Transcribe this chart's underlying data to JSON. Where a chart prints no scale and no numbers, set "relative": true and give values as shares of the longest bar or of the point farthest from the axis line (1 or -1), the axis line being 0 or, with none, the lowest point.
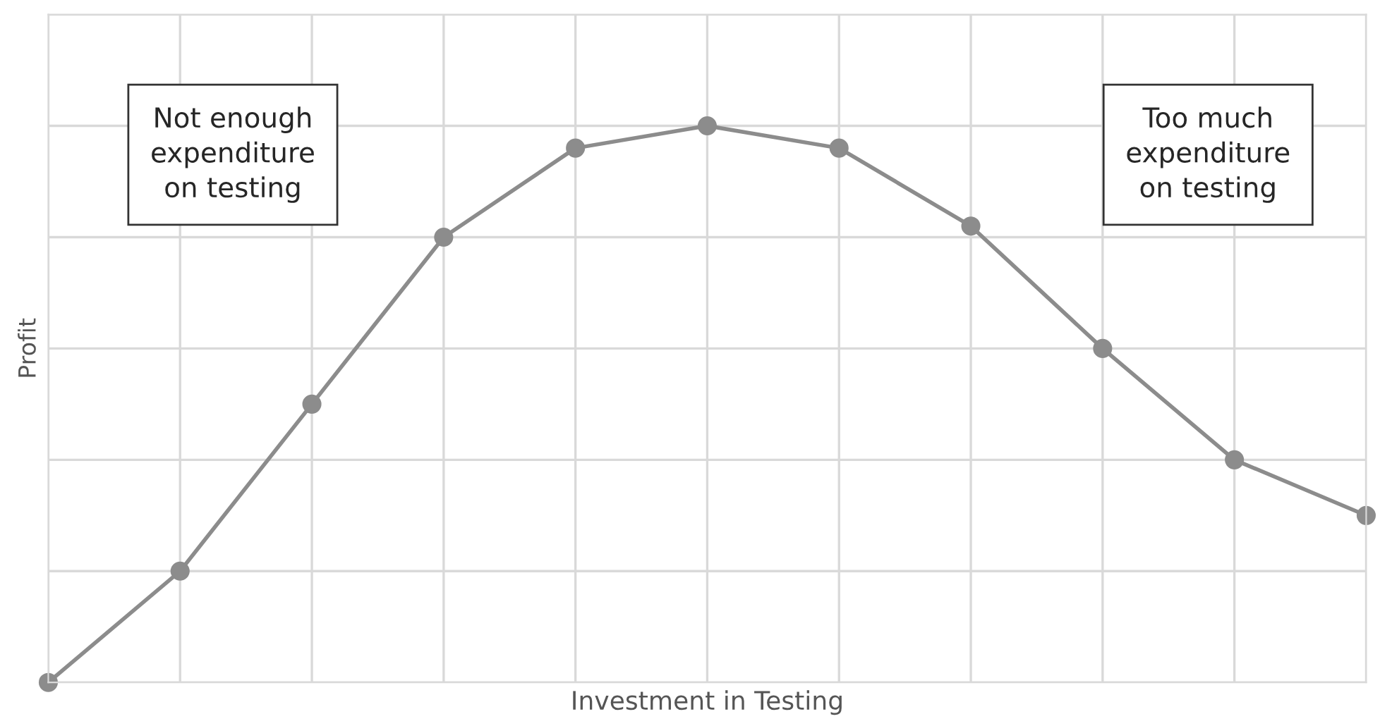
{
  "chart_data": {
    "type": "line",
    "xlabel": "Investment in Testing",
    "ylabel": "Profit",
    "relative": true,
    "categories": [
      null,
      null,
      null,
      null,
      null,
      null,
      null,
      null,
      null,
      null,
      null
    ],
    "series": [
      {
        "color": "#8c8c8c",
        "values": [
          0,
          0.2,
          0.5,
          0.8,
          0.96,
          1,
          0.96,
          0.82,
          0.6,
          0.4,
          0.3
        ]
      }
    ],
    "annotations": [
      "Not enough\nexpenditure\non testing",
      "Too much\nexpenditure\non testing"
    ],
    "grid": true,
    "tick_labels": false,
    "marker": "circle",
    "line_style": "solid",
    "legend": false
  }
}
